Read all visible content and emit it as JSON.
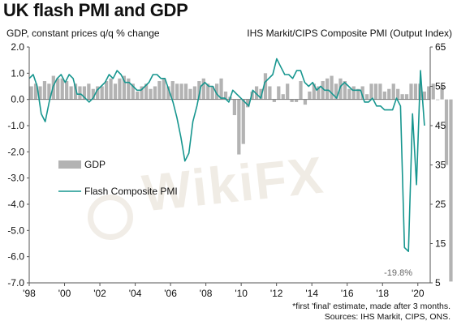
{
  "chart_data": {
    "type": "bar+line",
    "title": "UK flash PMI and GDP",
    "ylabel_left": "GDP, constant prices q/q % change",
    "ylabel_right": "IHS Markit/CIPS Composite PMI (Output Index)",
    "left_axis": {
      "min": -7.0,
      "max": 2.0,
      "ticks": [
        "2.0",
        "1.0",
        "0.0",
        "-1.0",
        "-2.0",
        "-3.0",
        "-4.0",
        "-5.0",
        "-6.0",
        "-7.0"
      ]
    },
    "right_axis": {
      "min": 5,
      "max": 65,
      "ticks": [
        "65",
        "55",
        "45",
        "35",
        "25",
        "15",
        "5"
      ]
    },
    "x_axis": {
      "start": 1998,
      "end": 2020.7,
      "ticks": [
        "'98",
        "'00",
        "'02",
        "'04",
        "'06",
        "'08",
        "'10",
        "'12",
        "'14",
        "'16",
        "'18",
        "'20"
      ]
    },
    "annotation": "-19.8%",
    "legend": [
      {
        "name": "GDP",
        "color": "#b3b3b3",
        "kind": "bar"
      },
      {
        "name": "Flash Composite PMI",
        "color": "#17968f",
        "kind": "line"
      }
    ],
    "series": [
      {
        "name": "GDP",
        "unit": "q/q %",
        "start": "1998 Q1",
        "values": [
          0.5,
          0.6,
          0.5,
          0.7,
          0.6,
          0.9,
          0.8,
          0.8,
          0.7,
          0.5,
          0.6,
          0.5,
          0.5,
          0.6,
          0.4,
          0.5,
          0.5,
          0.7,
          0.8,
          0.6,
          0.8,
          0.9,
          0.8,
          0.6,
          0.3,
          0.5,
          0.6,
          0.4,
          0.5,
          0.7,
          0.8,
          0.5,
          0.7,
          0.6,
          0.6,
          0.6,
          0.4,
          0.5,
          0.7,
          0.8,
          0.6,
          0.5,
          0.6,
          0.8,
          0.3,
          0.1,
          -0.6,
          -2.1,
          -1.7,
          -0.3,
          0.3,
          0.5,
          0.4,
          1.0,
          0.5,
          -0.1,
          0.5,
          0.2,
          0.6,
          -0.1,
          -0.1,
          0.7,
          -0.2,
          0.3,
          0.6,
          0.5,
          0.7,
          0.8,
          0.9,
          0.6,
          0.8,
          0.7,
          0.4,
          0.5,
          0.4,
          0.5,
          0.2,
          0.6,
          0.6,
          0.6,
          0.3,
          0.4,
          0.6,
          0.4,
          0.2,
          0.2,
          0.6,
          0.6,
          0.6,
          0.3,
          0.5,
          0.6,
          0.0,
          0.5,
          -2.5,
          -19.8
        ]
      },
      {
        "name": "Flash Composite PMI",
        "unit": "index",
        "start": "1998 Q1",
        "values": [
          57,
          58,
          55,
          48,
          46,
          51,
          55,
          57,
          58,
          56,
          58,
          57,
          53,
          53,
          52,
          51,
          52,
          54,
          55,
          56,
          58,
          57,
          59,
          58,
          56,
          56,
          55,
          54,
          54,
          55,
          56,
          58,
          58,
          57,
          57,
          54,
          51,
          47,
          42,
          36,
          38,
          46,
          50,
          55,
          56,
          55,
          55,
          53,
          52,
          52,
          51,
          54,
          53,
          52,
          51,
          50,
          54,
          53,
          52,
          56,
          57,
          58,
          62,
          60,
          58,
          58,
          57,
          59,
          59,
          56,
          55,
          56,
          54,
          55,
          54,
          54,
          53,
          52,
          55,
          56,
          55,
          54,
          54,
          54,
          51,
          51,
          52,
          50,
          50,
          49,
          49,
          49,
          52,
          50,
          14,
          13,
          48,
          30,
          59,
          45
        ]
      }
    ]
  }
}
